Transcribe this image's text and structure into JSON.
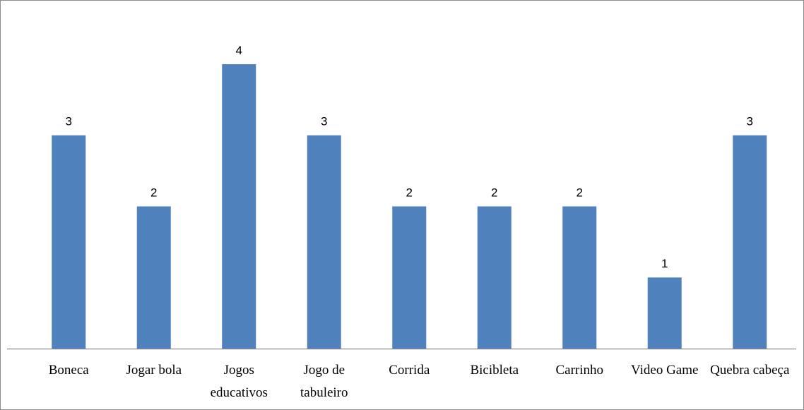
{
  "chart_data": {
    "type": "bar",
    "categories": [
      "Boneca",
      "Jogar bola",
      "Jogos educativos",
      "Jogo de tabuleiro",
      "Corrida",
      "Bicibleta",
      "Carrinho",
      "Video Game",
      "Quebra cabeça"
    ],
    "values": [
      3,
      2,
      4,
      3,
      2,
      2,
      2,
      1,
      3
    ],
    "color": "#4f81bd",
    "ylim": [
      0,
      4.5
    ]
  }
}
